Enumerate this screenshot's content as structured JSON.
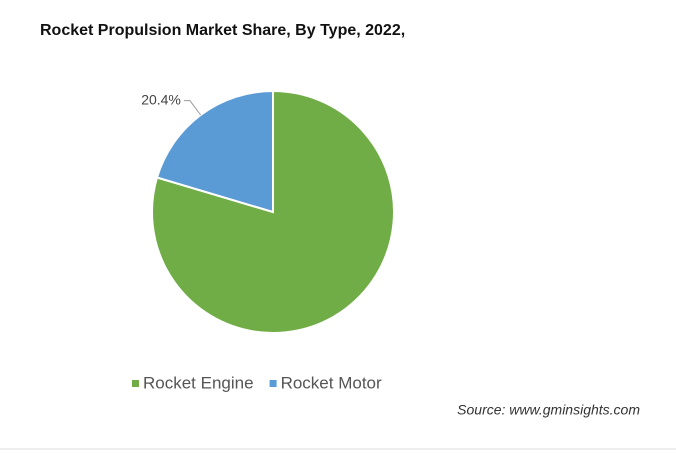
{
  "chart_data": {
    "type": "pie",
    "title": "Rocket Propulsion Market Share, By Type, 2022,",
    "categories": [
      "Rocket Engine",
      "Rocket Motor"
    ],
    "values": [
      79.6,
      20.4
    ],
    "value_labels": [
      null,
      "20.4%"
    ],
    "colors": [
      "#70ad47",
      "#5b9bd5"
    ],
    "legend": "bottom",
    "source": "Source: www.gminsights.com"
  }
}
